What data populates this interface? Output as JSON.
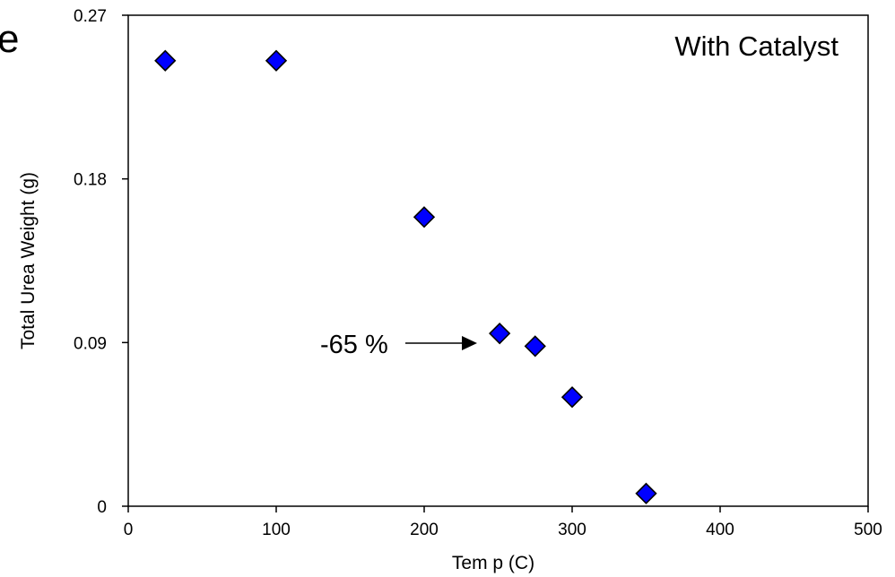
{
  "chart_data": {
    "type": "scatter",
    "title": "With Catalyst",
    "xlabel": "Tem p (C)",
    "ylabel": "Total Urea Weight (g)",
    "xlim": [
      0,
      500
    ],
    "ylim": [
      0,
      0.27
    ],
    "xticks": [
      "0",
      "100",
      "200",
      "300",
      "400",
      "500"
    ],
    "yticks": [
      "0",
      "0.09",
      "0.18",
      "0.27"
    ],
    "grid": false,
    "marker_color": "#0000ff",
    "annotation": {
      "text": "-65 %",
      "x": 251,
      "y": 0.095
    },
    "series": [
      {
        "x": [
          25,
          100,
          200,
          251,
          275,
          300,
          350
        ],
        "y": [
          0.245,
          0.245,
          0.159,
          0.095,
          0.088,
          0.06,
          0.007
        ]
      }
    ]
  },
  "edge_fragment": "e"
}
